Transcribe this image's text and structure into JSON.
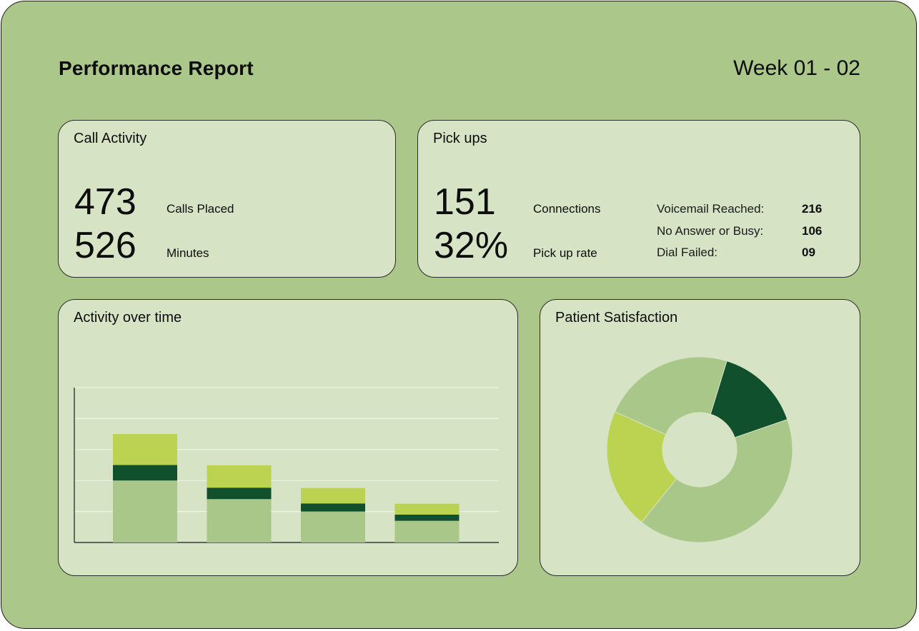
{
  "header": {
    "title": "Performance Report",
    "period": "Week 01 - 02"
  },
  "call_activity": {
    "title": "Call Activity",
    "calls_value": "473",
    "calls_label": "Calls Placed",
    "minutes_value": "526",
    "minutes_label": "Minutes"
  },
  "pickups": {
    "title": "Pick ups",
    "connections_value": "151",
    "connections_label": "Connections",
    "rate_value": "32%",
    "rate_label": "Pick up rate",
    "details": [
      {
        "label": "Voicemail Reached:",
        "value": "216"
      },
      {
        "label": "No Answer or Busy:",
        "value": "106"
      },
      {
        "label": "Dial Failed:",
        "value": "09"
      }
    ]
  },
  "activity_chart": {
    "title": "Activity over time"
  },
  "satisfaction_chart": {
    "title": "Patient Satisfaction"
  },
  "colors": {
    "background": "#abc78a",
    "card": "#d6e3c4",
    "light_green": "#a9c789",
    "dark_green": "#11502c",
    "lime": "#bcd351"
  },
  "chart_data": [
    {
      "type": "bar",
      "stacked": true,
      "grid": true,
      "ylim": [
        0,
        5
      ],
      "categories": [
        "",
        "",
        "",
        ""
      ],
      "series": [
        {
          "values": [
            2.0,
            1.4,
            1.0,
            0.7
          ],
          "color": "#a9c789"
        },
        {
          "values": [
            0.5,
            0.37,
            0.26,
            0.2
          ],
          "color": "#11502c"
        },
        {
          "values": [
            1.0,
            0.72,
            0.5,
            0.35
          ],
          "color": "#bcd351"
        }
      ]
    },
    {
      "type": "pie",
      "donut": true,
      "slices": [
        {
          "value": 15,
          "color": "#11502c"
        },
        {
          "value": 41,
          "color": "#a9c789"
        },
        {
          "value": 21,
          "color": "#bcd351"
        },
        {
          "value": 23,
          "color": "#a9c789"
        }
      ],
      "start_angle_deg": 17
    }
  ]
}
